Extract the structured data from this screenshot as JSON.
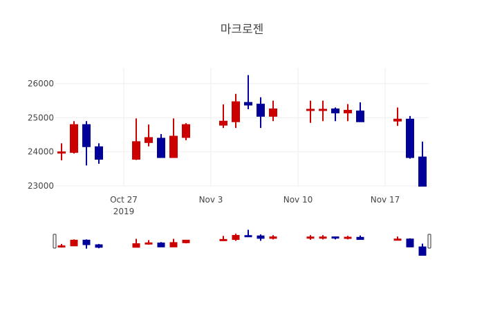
{
  "title": "마크로젠",
  "colors": {
    "increasing": "#cc0000",
    "decreasing": "#000099",
    "grid": "#eeeeee",
    "text": "#444444",
    "background": "#ffffff"
  },
  "chart_data": {
    "type": "candlestick",
    "title": "마크로젠",
    "xlabel": "",
    "ylabel": "",
    "ylim": [
      22980,
      26470
    ],
    "y_ticks": [
      23000,
      24000,
      25000,
      26000
    ],
    "y_tick_labels": [
      "23000",
      "24000",
      "25000",
      "26000"
    ],
    "x_ticks": [
      "2019-10-27",
      "2019-11-03",
      "2019-11-10",
      "2019-11-17"
    ],
    "x_tick_labels": [
      "Oct 27\n2019",
      "Nov 3",
      "Nov 10",
      "Nov 17"
    ],
    "xlim": [
      "2019-10-21.5",
      "2019-11-20.5"
    ],
    "grid": true,
    "rangeslider": true,
    "legend": false,
    "series": [
      {
        "name": "마크로젠",
        "x": [
          "2019-10-22",
          "2019-10-23",
          "2019-10-24",
          "2019-10-25",
          "2019-10-28",
          "2019-10-29",
          "2019-10-30",
          "2019-10-31",
          "2019-11-01",
          "2019-11-04",
          "2019-11-05",
          "2019-11-06",
          "2019-11-07",
          "2019-11-08",
          "2019-11-11",
          "2019-11-12",
          "2019-11-13",
          "2019-11-14",
          "2019-11-15",
          "2019-11-18",
          "2019-11-19",
          "2019-11-20"
        ],
        "open": [
          24000,
          23980,
          24800,
          24150,
          23780,
          24270,
          24400,
          23830,
          24420,
          24780,
          24880,
          25450,
          25400,
          25040,
          25250,
          25250,
          25260,
          25140,
          25200,
          24900,
          24960,
          23850
        ],
        "high": [
          24250,
          24900,
          24900,
          24250,
          24980,
          24800,
          24520,
          24980,
          24840,
          25390,
          25700,
          26250,
          25600,
          25500,
          25500,
          25500,
          25300,
          25400,
          25450,
          25300,
          25050,
          24300
        ],
        "low": [
          23750,
          23950,
          23600,
          23650,
          23760,
          24160,
          23830,
          23830,
          24340,
          24700,
          24700,
          25250,
          24700,
          24900,
          24850,
          24900,
          24900,
          24900,
          24880,
          24760,
          23800,
          22650
        ],
        "close": [
          24000,
          24800,
          24150,
          23780,
          24300,
          24420,
          23830,
          24460,
          24800,
          24900,
          25470,
          25370,
          25040,
          25260,
          25250,
          25250,
          25140,
          25220,
          24880,
          24960,
          23830,
          22650
        ]
      }
    ]
  }
}
